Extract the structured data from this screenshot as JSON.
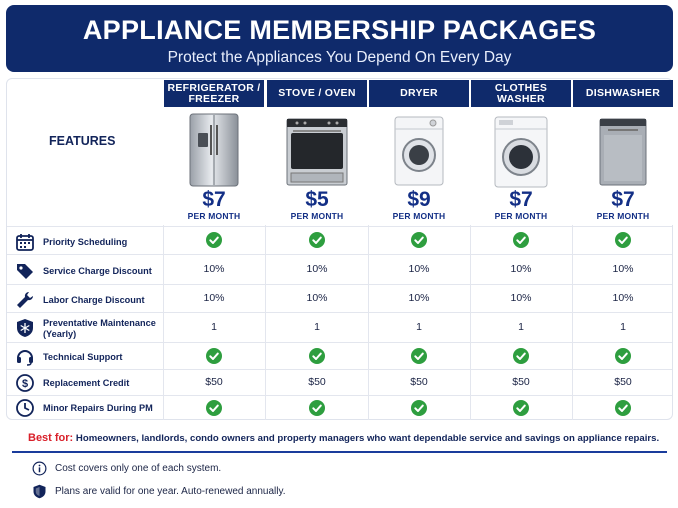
{
  "header": {
    "title": "APPLIANCE MEMBERSHIP PACKAGES",
    "subtitle": "Protect the Appliances You Depend On Every Day"
  },
  "features_label": "FEATURES",
  "plans": [
    {
      "name": "REFRIGERATOR / FREEZER",
      "price": "$7",
      "period": "PER MONTH"
    },
    {
      "name": "STOVE / OVEN",
      "price": "$5",
      "period": "PER MONTH"
    },
    {
      "name": "DRYER",
      "price": "$9",
      "period": "PER MONTH"
    },
    {
      "name": "CLOTHES WASHER",
      "price": "$7",
      "period": "PER MONTH"
    },
    {
      "name": "DISHWASHER",
      "price": "$7",
      "period": "PER MONTH"
    }
  ],
  "features": [
    {
      "label": "Priority Scheduling",
      "icon": "calendar-icon",
      "values": [
        "check",
        "check",
        "check",
        "check",
        "check"
      ]
    },
    {
      "label": "Service Charge Discount",
      "icon": "tag-icon",
      "values": [
        "10%",
        "10%",
        "10%",
        "10%",
        "10%"
      ]
    },
    {
      "label": "Labor Charge Discount",
      "icon": "wrench-icon",
      "values": [
        "10%",
        "10%",
        "10%",
        "10%",
        "10%"
      ]
    },
    {
      "label": "Preventative Maintenance (Yearly)",
      "icon": "snowflake-shield-icon",
      "values": [
        "1",
        "1",
        "1",
        "1",
        "1"
      ]
    },
    {
      "label": "Technical Support",
      "icon": "headset-icon",
      "values": [
        "check",
        "check",
        "check",
        "check",
        "check"
      ]
    },
    {
      "label": "Replacement Credit",
      "icon": "dollar-icon",
      "values": [
        "$50",
        "$50",
        "$50",
        "$50",
        "$50"
      ]
    },
    {
      "label": "Minor Repairs During PM",
      "icon": "clock-icon",
      "values": [
        "check",
        "check",
        "check",
        "check",
        "check"
      ]
    }
  ],
  "best_for": {
    "lead": "Best for:",
    "text": "Homeowners, landlords, condo owners and property managers who want dependable service and savings on appliance repairs."
  },
  "notes": [
    {
      "icon": "info-icon",
      "text": "Cost covers only one of each system."
    },
    {
      "icon": "shield-icon",
      "text": "Plans are valid for one year. Auto-renewed annually."
    }
  ],
  "colors": {
    "navy": "#0f2a6b",
    "accent_blue": "#132f86",
    "check_green": "#2e9e3f",
    "best_for_red": "#d9202a"
  }
}
